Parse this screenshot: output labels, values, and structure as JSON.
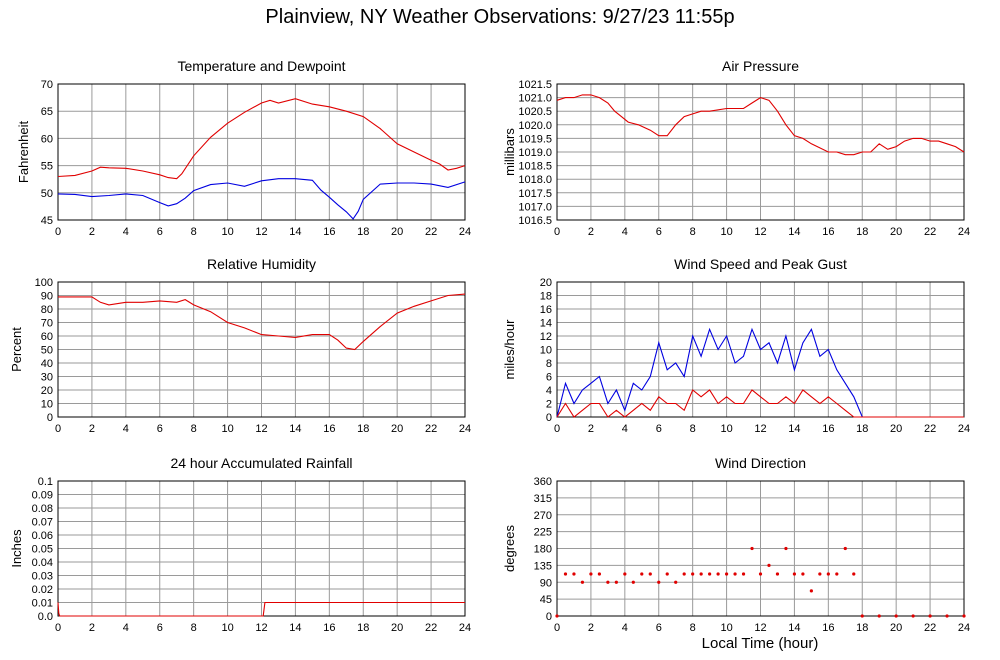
{
  "page_title": "Plainview, NY Weather Observations: 9/27/23 11:55p",
  "footer_xlabel": "Local Time (hour)",
  "chart_data": [
    {
      "id": "temp",
      "type": "line",
      "title": "Temperature and Dewpoint",
      "xlabel": "",
      "ylabel": "Fahrenheit",
      "xlim": [
        0,
        24
      ],
      "ylim": [
        45,
        70
      ],
      "xticks": [
        0,
        2,
        4,
        6,
        8,
        10,
        12,
        14,
        16,
        18,
        20,
        22,
        24
      ],
      "yticks": [
        45,
        50,
        55,
        60,
        65,
        70
      ],
      "ytick_labels": [
        "45",
        "50",
        "55",
        "60",
        "65",
        "70"
      ],
      "grid": true,
      "series": [
        {
          "color": "#e00000",
          "x": [
            0,
            1,
            2,
            2.5,
            3,
            4,
            5,
            6,
            6.5,
            7,
            7.3,
            8,
            9,
            10,
            11,
            12,
            12.5,
            13,
            14,
            15,
            16,
            17,
            18,
            19,
            20,
            21,
            22,
            22.5,
            23,
            23.5,
            24
          ],
          "y": [
            53,
            53.2,
            54,
            54.7,
            54.6,
            54.5,
            54.0,
            53.3,
            52.8,
            52.6,
            53.5,
            56.8,
            60.2,
            62.8,
            64.8,
            66.5,
            67,
            66.5,
            67.3,
            66.3,
            65.8,
            65.0,
            64.0,
            61.8,
            59.0,
            57.5,
            56.0,
            55.3,
            54.2,
            54.5,
            55
          ]
        },
        {
          "color": "#0000e0",
          "x": [
            0,
            1,
            2,
            3,
            4,
            5,
            6,
            6.5,
            7,
            7.5,
            8,
            9,
            10,
            11,
            12,
            13,
            14,
            15,
            15.5,
            16,
            16.5,
            17,
            17.4,
            17.7,
            18,
            19,
            20,
            21,
            22,
            23,
            24
          ],
          "y": [
            49.8,
            49.7,
            49.3,
            49.5,
            49.8,
            49.5,
            48.2,
            47.6,
            48.0,
            49.0,
            50.4,
            51.5,
            51.8,
            51.2,
            52.2,
            52.6,
            52.6,
            52.3,
            50.5,
            49.2,
            47.8,
            46.5,
            45.2,
            46.6,
            48.8,
            51.6,
            51.8,
            51.8,
            51.6,
            51.0,
            52
          ]
        }
      ]
    },
    {
      "id": "pressure",
      "type": "line",
      "title": "Air Pressure",
      "xlabel": "",
      "ylabel": "millibars",
      "xlim": [
        0,
        24
      ],
      "ylim": [
        1016.5,
        1021.5
      ],
      "xticks": [
        0,
        2,
        4,
        6,
        8,
        10,
        12,
        14,
        16,
        18,
        20,
        22,
        24
      ],
      "yticks": [
        1016.5,
        1017,
        1017.5,
        1018,
        1018.5,
        1019,
        1019.5,
        1020,
        1020.5,
        1021,
        1021.5
      ],
      "ytick_labels": [
        "1016.5",
        "1017.0",
        "1017.5",
        "1018.0",
        "1018.5",
        "1019.0",
        "1019.5",
        "1020.0",
        "1020.5",
        "1021.0",
        "1021.5"
      ],
      "grid": true,
      "series": [
        {
          "color": "#e00000",
          "x": [
            0,
            0.5,
            1,
            1.5,
            2,
            2.5,
            3,
            3.4,
            3.8,
            4.2,
            4.8,
            5.5,
            6,
            6.5,
            7,
            7.5,
            8,
            8.5,
            9,
            10,
            11,
            11.5,
            12,
            12.5,
            13,
            13.5,
            14,
            14.5,
            15,
            16,
            16.5,
            17,
            17.5,
            18,
            18.5,
            19,
            19.5,
            20,
            20.5,
            21,
            21.5,
            22,
            22.5,
            23,
            23.5,
            24
          ],
          "y": [
            1020.9,
            1021.0,
            1021.0,
            1021.1,
            1021.1,
            1021.0,
            1020.8,
            1020.5,
            1020.3,
            1020.1,
            1020.0,
            1019.8,
            1019.6,
            1019.6,
            1020.0,
            1020.3,
            1020.4,
            1020.5,
            1020.5,
            1020.6,
            1020.6,
            1020.8,
            1021.0,
            1020.9,
            1020.5,
            1020.0,
            1019.6,
            1019.5,
            1019.3,
            1019.0,
            1019.0,
            1018.9,
            1018.9,
            1019.0,
            1019.0,
            1019.3,
            1019.1,
            1019.2,
            1019.4,
            1019.5,
            1019.5,
            1019.4,
            1019.4,
            1019.3,
            1019.2,
            1019.0
          ]
        }
      ]
    },
    {
      "id": "humidity",
      "type": "line",
      "title": "Relative Humidity",
      "xlabel": "",
      "ylabel": "Percent",
      "xlim": [
        0,
        24
      ],
      "ylim": [
        0,
        100
      ],
      "xticks": [
        0,
        2,
        4,
        6,
        8,
        10,
        12,
        14,
        16,
        18,
        20,
        22,
        24
      ],
      "yticks": [
        0,
        10,
        20,
        30,
        40,
        50,
        60,
        70,
        80,
        90,
        100
      ],
      "ytick_labels": [
        "0",
        "10",
        "20",
        "30",
        "40",
        "50",
        "60",
        "70",
        "80",
        "90",
        "100"
      ],
      "grid": true,
      "series": [
        {
          "color": "#e00000",
          "x": [
            0,
            1,
            2,
            2.5,
            3,
            4,
            5,
            6,
            7,
            7.5,
            8,
            9,
            10,
            11,
            12,
            13,
            14,
            15,
            16,
            16.5,
            17,
            17.5,
            18,
            19,
            20,
            21,
            22,
            23,
            24
          ],
          "y": [
            89,
            89,
            89,
            85,
            83,
            85,
            85,
            86,
            85,
            87,
            83,
            78,
            70,
            66,
            61,
            60,
            59,
            61,
            61,
            57,
            51,
            50,
            56,
            67,
            77,
            82,
            86,
            90,
            91
          ]
        }
      ]
    },
    {
      "id": "wind",
      "type": "line",
      "title": "Wind Speed and Peak Gust",
      "xlabel": "",
      "ylabel": "miles/hour",
      "xlim": [
        0,
        24
      ],
      "ylim": [
        0,
        20
      ],
      "xticks": [
        0,
        2,
        4,
        6,
        8,
        10,
        12,
        14,
        16,
        18,
        20,
        22,
        24
      ],
      "yticks": [
        0,
        2,
        4,
        6,
        8,
        10,
        12,
        14,
        16,
        18,
        20
      ],
      "ytick_labels": [
        "0",
        "2",
        "4",
        "6",
        "8",
        "10",
        "12",
        "14",
        "16",
        "18",
        "20"
      ],
      "grid": true,
      "series": [
        {
          "color": "#0000e0",
          "x": [
            0,
            0.5,
            1,
            1.5,
            2,
            2.5,
            3,
            3.5,
            4,
            4.5,
            5,
            5.5,
            6,
            6.5,
            7,
            7.5,
            8,
            8.5,
            9,
            9.5,
            10,
            10.5,
            11,
            11.5,
            12,
            12.5,
            13,
            13.5,
            14,
            14.5,
            15,
            15.5,
            16,
            16.5,
            17,
            17.5,
            18,
            19,
            20,
            21,
            22,
            23,
            24
          ],
          "y": [
            0,
            5,
            2,
            4,
            5,
            6,
            2,
            4,
            1,
            5,
            4,
            6,
            11,
            7,
            8,
            6,
            12,
            9,
            13,
            10,
            12,
            8,
            9,
            13,
            10,
            11,
            8,
            12,
            7,
            11,
            13,
            9,
            10,
            7,
            5,
            3,
            0,
            0,
            0,
            0,
            0,
            0,
            0
          ]
        },
        {
          "color": "#e00000",
          "x": [
            0,
            0.5,
            1,
            1.5,
            2,
            2.5,
            3,
            3.5,
            4,
            4.5,
            5,
            5.5,
            6,
            6.5,
            7,
            7.5,
            8,
            8.5,
            9,
            9.5,
            10,
            10.5,
            11,
            11.5,
            12,
            12.5,
            13,
            13.5,
            14,
            14.5,
            15,
            15.5,
            16,
            16.5,
            17,
            17.5,
            18,
            19,
            20,
            21,
            22,
            23,
            24
          ],
          "y": [
            0,
            2,
            0,
            1,
            2,
            2,
            0,
            1,
            0,
            1,
            2,
            1,
            3,
            2,
            2,
            1,
            4,
            3,
            4,
            2,
            3,
            2,
            2,
            4,
            3,
            2,
            2,
            3,
            2,
            4,
            3,
            2,
            3,
            2,
            1,
            0,
            0,
            0,
            0,
            0,
            0,
            0,
            0
          ]
        }
      ]
    },
    {
      "id": "rain",
      "type": "line",
      "title": "24 hour Accumulated Rainfall",
      "xlabel": "",
      "ylabel": "Inches",
      "xlim": [
        0,
        24
      ],
      "ylim": [
        0,
        0.1
      ],
      "xticks": [
        0,
        2,
        4,
        6,
        8,
        10,
        12,
        14,
        16,
        18,
        20,
        22,
        24
      ],
      "yticks": [
        0,
        0.01,
        0.02,
        0.03,
        0.04,
        0.05,
        0.06,
        0.07,
        0.08,
        0.09,
        0.1
      ],
      "ytick_labels": [
        "0.0",
        "0.01",
        "0.02",
        "0.03",
        "0.04",
        "0.05",
        "0.06",
        "0.07",
        "0.08",
        "0.09",
        "0.1"
      ],
      "grid": true,
      "series": [
        {
          "color": "#e00000",
          "x": [
            0,
            0.05,
            0.1,
            12.1,
            12.2,
            24
          ],
          "y": [
            0.01,
            0.002,
            0,
            0,
            0.01,
            0.01
          ]
        }
      ]
    },
    {
      "id": "direction",
      "type": "scatter",
      "title": "Wind Direction",
      "xlabel": "Local Time (hour)",
      "ylabel": "degrees",
      "xlim": [
        0,
        24
      ],
      "ylim": [
        0,
        360
      ],
      "xticks": [
        0,
        2,
        4,
        6,
        8,
        10,
        12,
        14,
        16,
        18,
        20,
        22,
        24
      ],
      "yticks": [
        0,
        45,
        90,
        135,
        180,
        225,
        270,
        315,
        360
      ],
      "ytick_labels": [
        "0",
        "45",
        "90",
        "135",
        "180",
        "225",
        "270",
        "315",
        "360"
      ],
      "grid": true,
      "series": [
        {
          "color": "#e00000",
          "x": [
            0,
            0.5,
            1,
            1.5,
            2,
            2.5,
            3,
            3.5,
            4,
            4.5,
            5,
            5.5,
            6,
            6.5,
            7,
            7.5,
            8,
            8.5,
            9,
            9.5,
            10,
            10.5,
            11,
            11.5,
            12,
            12.5,
            13,
            13.5,
            14,
            14.5,
            15,
            15.5,
            16,
            16.5,
            17,
            17.5,
            18,
            19,
            20,
            21,
            22,
            23,
            24
          ],
          "y": [
            0,
            112,
            112,
            90,
            112,
            112,
            90,
            90,
            112,
            90,
            112,
            112,
            90,
            112,
            90,
            112,
            112,
            112,
            112,
            112,
            112,
            112,
            112,
            180,
            112,
            135,
            112,
            180,
            112,
            112,
            67,
            112,
            112,
            112,
            180,
            112,
            0,
            0,
            0,
            0,
            0,
            0,
            0
          ]
        }
      ]
    }
  ]
}
